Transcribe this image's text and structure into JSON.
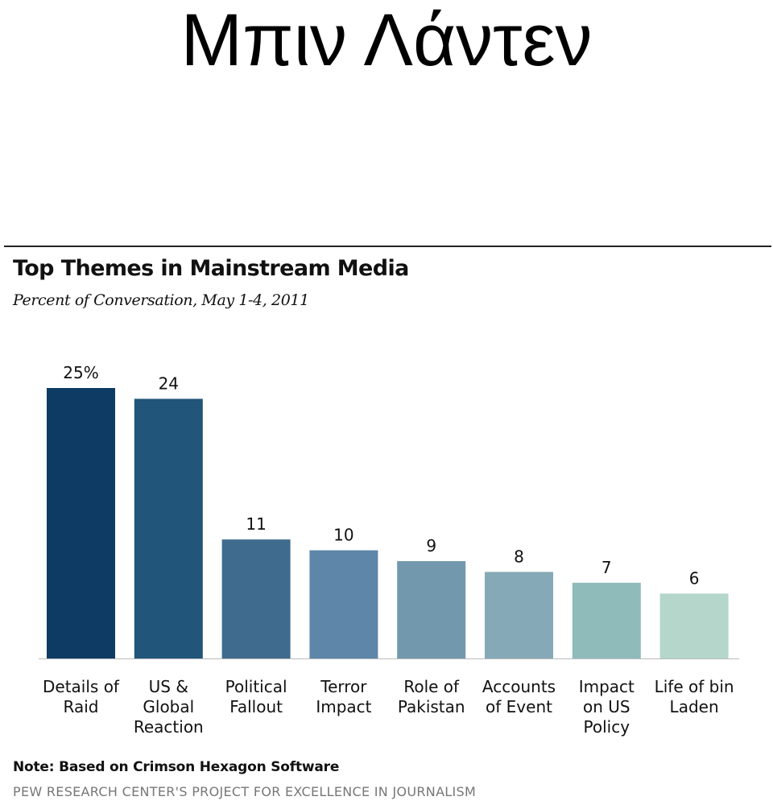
{
  "slide": {
    "title": "Μπιν Λάντεν"
  },
  "chart_data": {
    "type": "bar",
    "title": "Top Themes in Mainstream Media",
    "subtitle": "Percent of Conversation, May 1-4, 2011",
    "categories": [
      [
        "Details of",
        "Raid"
      ],
      [
        "US &",
        "Global",
        "Reaction"
      ],
      [
        "Political",
        "Fallout"
      ],
      [
        "Terror",
        "Impact"
      ],
      [
        "Role of",
        "Pakistan"
      ],
      [
        "Accounts",
        "of Event"
      ],
      [
        "Impact",
        "on US",
        "Policy"
      ],
      [
        "Life of bin",
        "Laden"
      ]
    ],
    "values": [
      25,
      24,
      11,
      10,
      9,
      8,
      7,
      6
    ],
    "value_labels": [
      "25%",
      "24",
      "11",
      "10",
      "9",
      "8",
      "7",
      "6"
    ],
    "colors": [
      "#0d3b63",
      "#215579",
      "#3f6b8e",
      "#5e86a8",
      "#7298ae",
      "#86a9b7",
      "#90bbbb",
      "#b4d6cb"
    ],
    "ylim": [
      0,
      25
    ],
    "grid": false,
    "note": "Note: Based on Crimson Hexagon Software",
    "source": "PEW RESEARCH CENTER'S PROJECT FOR EXCELLENCE IN JOURNALISM"
  }
}
